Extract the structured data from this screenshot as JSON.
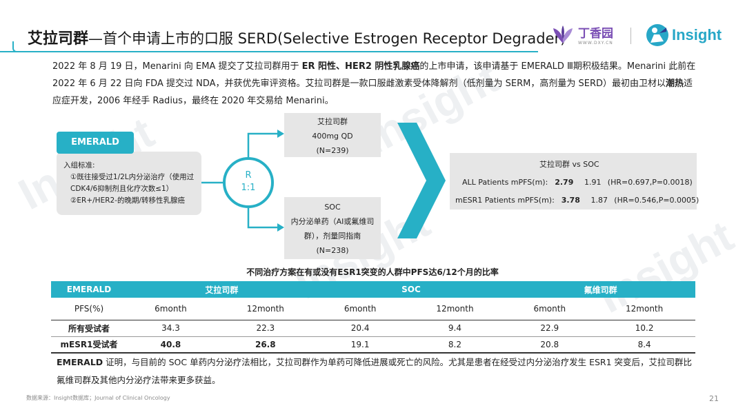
{
  "header": {
    "title_bold": "艾拉司群",
    "title_rest": "—首个申请上市的口服 SERD(Selective Estrogen Receptor Degrader)",
    "dxy_logo_text": "丁香园",
    "dxy_logo_url": "WWW.DXY.CN",
    "insight_logo_text": "Insight"
  },
  "intro": {
    "p1": "2022 年 8 月 19 日，Menarini 向 EMA 提交了艾拉司群用于 ",
    "p1_bold": "ER 阳性、HER2 阴性乳腺癌",
    "p2": "的上市申请，该申请基于 EMERALD Ⅲ期积极结果。Menarini 此前在 2022 年 6 月 22 日向 FDA 提交过 NDA，并获优先审评资格。艾拉司群是一款口服雌激素受体降解剂（低剂量为 SERM，高剂量为 SERD）最初由卫材以",
    "p2_bold": "潮热",
    "p3": "适应症开发，2006 年经手 Radius，最终在 2020 年交易给 Menarini。"
  },
  "trial": {
    "name": "EMERALD",
    "criteria_title": "入组标准:",
    "criteria_1": "①既往接受过1/2L内分泌治疗（使用过CDK4/6抑制剂且化疗次数≤1）",
    "criteria_2": "②ER+/HER2-的晚期/转移性乳腺癌",
    "randomization": "R",
    "ratio": "1:1",
    "arm1_name": "艾拉司群",
    "arm1_dose": "400mg QD",
    "arm1_n": "(N=239)",
    "arm2_name": "SOC",
    "arm2_desc": "内分泌单药（AI或氟维司群），剂量同指南",
    "arm2_n": "(N=238)"
  },
  "result": {
    "header": "艾拉司群 vs SOC",
    "rows": [
      {
        "label": "ALL  Patients mPFS(m):",
        "drug": "2.79",
        "soc": "1.91",
        "hr": "(HR=0.697,P=0.0018)"
      },
      {
        "label": "mESR1 Patients mPFS(m):",
        "drug": "3.78",
        "soc": "1.87",
        "hr": "(HR=0.546,P=0.0005)"
      }
    ]
  },
  "table": {
    "title": "不同治疗方案在有或没有ESR1突变的人群中PFS达6/12个月的比率",
    "headers": [
      "EMERALD",
      "艾拉司群",
      "SOC",
      "氟维司群"
    ],
    "subheader": [
      "PFS(%)",
      "6month",
      "12month",
      "6month",
      "12month",
      "6month",
      "12month"
    ],
    "rows": [
      {
        "label": "所有受试者",
        "values": [
          "34.3",
          "22.3",
          "20.4",
          "9.4",
          "22.9",
          "10.2"
        ]
      },
      {
        "label": "mESR1受试者",
        "values": [
          "40.8",
          "26.8",
          "19.1",
          "8.2",
          "20.8",
          "8.4"
        ]
      }
    ]
  },
  "conclusion": {
    "bold": "EMERALD",
    "text": " 证明，与目前的 SOC 单药内分泌疗法相比，艾拉司群作为单药可降低进展或死亡的风险。尤其是患者在经受过内分泌治疗发生 ESR1 突变后，艾拉司群比氟维司群及其他内分泌疗法带来更多获益。"
  },
  "footer": {
    "source": "数据来源：Insight数据库；Journal of Clinical Oncology",
    "page": "21"
  },
  "colors": {
    "accent": "#27b0c6",
    "box_gray": "#e6e6e6",
    "brand_purple": "#7b4fb5"
  }
}
